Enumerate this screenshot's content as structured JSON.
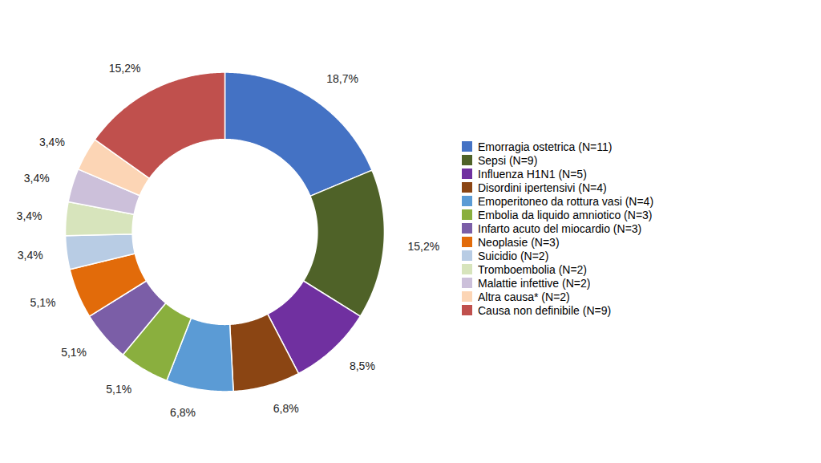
{
  "chart_data": {
    "type": "pie",
    "categories": [
      "Emorragia ostetrica (N=11)",
      "Sepsi (N=9)",
      "Influenza H1N1 (N=5)",
      "Disordini ipertensivi (N=4)",
      "Emoperitoneo da rottura vasi (N=4)",
      "Embolia da liquido amniotico (N=3)",
      "Infarto acuto del miocardio (N=3)",
      "Neoplasie (N=3)",
      "Suicidio (N=2)",
      "Tromboembolia (N=2)",
      "Malattie infettive (N=2)",
      "Altra causa* (N=2)",
      "Causa non definibile (N=9)"
    ],
    "values": [
      18.7,
      15.2,
      8.5,
      6.8,
      6.8,
      5.1,
      5.1,
      5.1,
      3.4,
      3.4,
      3.4,
      3.4,
      15.2
    ],
    "value_labels": [
      "18,7%",
      "15,2%",
      "8,5%",
      "6,8%",
      "6,8%",
      "5,1%",
      "5,1%",
      "5,1%",
      "3,4%",
      "3,4%",
      "3,4%",
      "3,4%",
      "15,2%"
    ],
    "colors": [
      "#4472C4",
      "#4F6228",
      "#7030A0",
      "#8B4513",
      "#5B9BD5",
      "#8AAF3E",
      "#7B5EA7",
      "#E26B0A",
      "#B8CCE4",
      "#D7E4BC",
      "#CCC0DA",
      "#FCD5B5",
      "#C0504D"
    ],
    "data_labels": true,
    "legend": "right"
  }
}
